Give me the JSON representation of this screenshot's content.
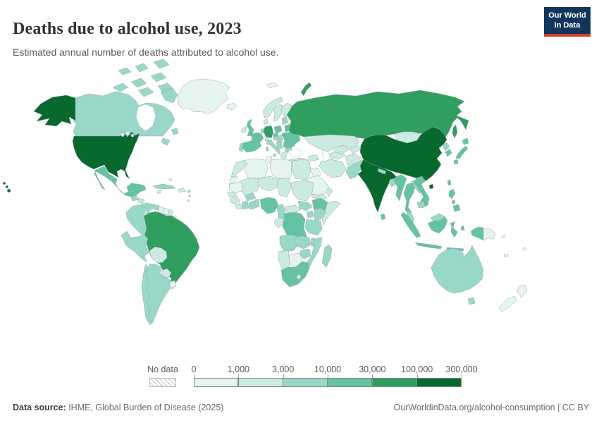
{
  "header": {
    "title": "Deaths due to alcohol use, 2023",
    "subtitle": "Estimated annual number of deaths attributed to alcohol use."
  },
  "logo": {
    "line1": "Our World",
    "line2": "in Data",
    "bg": "#12355b",
    "accent": "#d53d32"
  },
  "legend": {
    "no_data_label": "No data",
    "ticks": [
      "0",
      "1,000",
      "3,000",
      "10,000",
      "30,000",
      "100,000",
      "300,000"
    ]
  },
  "footer": {
    "source_label": "Data source:",
    "source_value": " IHME, Global Burden of Disease (2025)",
    "right_text": "OurWorldinData.org/alcohol-consumption | CC BY"
  },
  "map": {
    "border_color": "#97a8a2",
    "water_color": "#ffffff"
  },
  "chart_data": {
    "type": "heatmap",
    "subtype": "choropleth_world_map",
    "title": "Deaths due to alcohol use, 2023",
    "subtitle": "Estimated annual number of deaths attributed to alcohol use.",
    "unit": "deaths per year",
    "legend_position": "bottom",
    "scale": "log-binned",
    "bin_edges": [
      0,
      1000,
      3000,
      10000,
      30000,
      100000,
      300000
    ],
    "bin_labels": [
      "0",
      "1,000",
      "3,000",
      "10,000",
      "30,000",
      "100,000",
      "300,000"
    ],
    "bin_ranges": [
      "0–1,000",
      "1,000–3,000",
      "3,000–10,000",
      "10,000–30,000",
      "30,000–100,000",
      "100,000–300,000"
    ],
    "bin_colors": [
      "#e6f4f1",
      "#cbeae1",
      "#99d8c9",
      "#66c2a4",
      "#2f9e5f",
      "#07692e"
    ],
    "no_data_label": "No data",
    "countries": {
      "united-states": 5,
      "canada": 2,
      "greenland": 0,
      "mexico": 3,
      "guatemala": 2,
      "honduras": 1,
      "nicaragua": 1,
      "costa-rica": 1,
      "panama": 1,
      "cuba": 2,
      "jamaica": 1,
      "hispaniola": 1,
      "puerto-rico": 2,
      "bahamas": 0,
      "lesser-antilles": 1,
      "colombia": 2,
      "venezuela": 2,
      "guyana": 0,
      "suriname": 0,
      "french-guiana": 1,
      "ecuador": 2,
      "peru": 2,
      "brazil": 4,
      "bolivia": 1,
      "paraguay": 1,
      "uruguay": 0,
      "argentina": 2,
      "chile": 2,
      "iceland": 0,
      "svalbard": 0,
      "norway": 1,
      "sweden": 1,
      "finland": 1,
      "denmark": 1,
      "united-kingdom": 3,
      "ireland": 1,
      "netherlands": 2,
      "germany": 4,
      "france": 3,
      "spain": 3,
      "portugal": 2,
      "switzerland": 1,
      "austria": 2,
      "czechia": 3,
      "poland": 3,
      "baltics": 2,
      "belarus": 3,
      "ukraine": 3,
      "slovakia": 2,
      "hungary": 2,
      "romania": 3,
      "western-balkans": 2,
      "bulgaria": 2,
      "greece": 1,
      "italy": 2,
      "turkey": 1,
      "syria": 0,
      "iraq": 0,
      "israel-jordan": 0,
      "saudi-arabia": 0,
      "yemen": 1,
      "oman": 1,
      "iran": 1,
      "caucasus": 1,
      "kazakhstan": 1,
      "turkmenistan": 1,
      "uzbekistan": 1,
      "kyrgyzstan-tajikistan": 1,
      "afghanistan": 1,
      "pakistan": 2,
      "india": 5,
      "nepal": 2,
      "bangladesh": 2,
      "sri-lanka": 3,
      "myanmar": 3,
      "thailand": 3,
      "laos": 2,
      "vietnam": 3,
      "cambodia": 2,
      "malaysia": 2,
      "indonesia": 3,
      "philippines": 3,
      "taiwan": 3,
      "china": 5,
      "mongolia": 1,
      "russia": 4,
      "north-korea": 2,
      "south-korea": 3,
      "japan": 3,
      "papua-new-guinea": 0,
      "australia": 2,
      "new-zealand": 0,
      "fiji": 0,
      "solomon-islands": 0,
      "new-caledonia": 0,
      "morocco": 1,
      "western-sahara": 0,
      "algeria": 0,
      "tunisia": 0,
      "libya": 0,
      "egypt": 1,
      "mauritania": 0,
      "mali": 1,
      "niger": 1,
      "chad": 1,
      "sudan": 1,
      "senegal": 1,
      "guinea": 1,
      "sierra-leone-liberia": 1,
      "ivory-coast": 2,
      "ghana": 2,
      "togo-benin": 2,
      "burkina-faso": 2,
      "nigeria": 3,
      "cameroon": 2,
      "central-african-republic": 1,
      "south-sudan": 2,
      "eritrea": 1,
      "ethiopia": 3,
      "somalia": 1,
      "uganda": 2,
      "kenya": 2,
      "gabon-congo": 1,
      "dr-congo": 3,
      "tanzania": 2,
      "angola": 2,
      "zambia": 2,
      "malawi": 2,
      "mozambique": 2,
      "zimbabwe": 2,
      "botswana": 0,
      "namibia": 1,
      "south-africa": 3,
      "lesotho": 1,
      "madagascar": 2
    }
  }
}
